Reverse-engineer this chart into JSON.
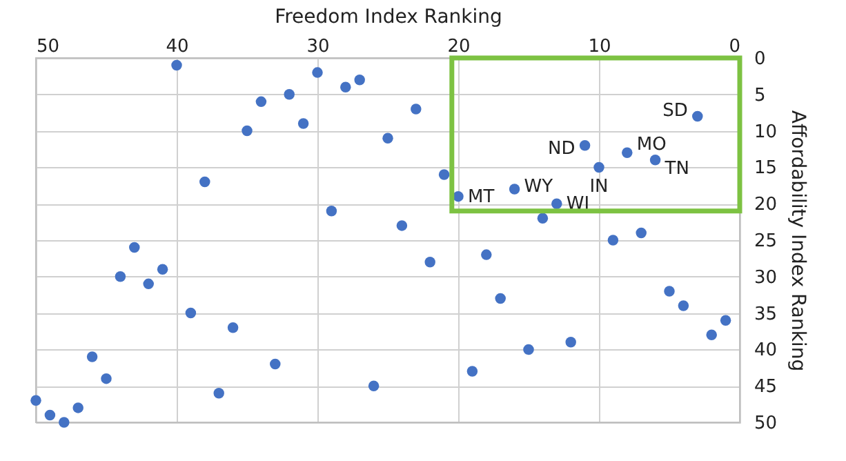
{
  "chart_data": {
    "type": "scatter",
    "xlabel": "Freedom Index Ranking",
    "ylabel": "Affordability Index Ranking",
    "x": [
      40,
      34,
      32,
      30,
      28,
      27,
      35,
      31,
      25,
      23,
      38,
      29,
      24,
      21,
      20,
      16,
      11,
      10,
      8,
      6,
      3,
      13,
      14,
      9,
      7,
      5,
      4,
      1,
      2,
      12,
      15,
      19,
      17,
      18,
      22,
      43,
      44,
      42,
      41,
      39,
      36,
      33,
      37,
      46,
      45,
      50,
      49,
      48,
      47,
      26
    ],
    "series": [
      {
        "color": "#4472c4",
        "values": [
          1,
          6,
          5,
          2,
          4,
          3,
          10,
          9,
          11,
          7,
          17,
          21,
          23,
          16,
          19,
          18,
          12,
          15,
          13,
          14,
          8,
          20,
          22,
          25,
          24,
          32,
          34,
          36,
          38,
          39,
          40,
          43,
          33,
          27,
          28,
          26,
          30,
          31,
          29,
          35,
          37,
          42,
          46,
          41,
          44,
          47,
          49,
          50,
          48,
          45
        ]
      }
    ],
    "xlim": [
      50,
      0
    ],
    "xticks": [
      50,
      40,
      30,
      20,
      10,
      0
    ],
    "ylim": [
      50,
      0
    ],
    "yticks": [
      0,
      5,
      10,
      15,
      20,
      25,
      30,
      35,
      40,
      45,
      50
    ],
    "annotations": [
      {
        "text": "SD",
        "x": 3,
        "y": 8
      },
      {
        "text": "ND",
        "x": 11,
        "y": 12
      },
      {
        "text": "MO",
        "x": 8,
        "y": 13
      },
      {
        "text": "TN",
        "x": 6,
        "y": 14
      },
      {
        "text": "IN",
        "x": 10,
        "y": 15
      },
      {
        "text": "WY",
        "x": 16,
        "y": 18
      },
      {
        "text": "MT",
        "x": 20,
        "y": 19
      },
      {
        "text": "WI",
        "x": 13,
        "y": 20
      }
    ],
    "grid": true,
    "marker": "circle",
    "legend": false
  }
}
